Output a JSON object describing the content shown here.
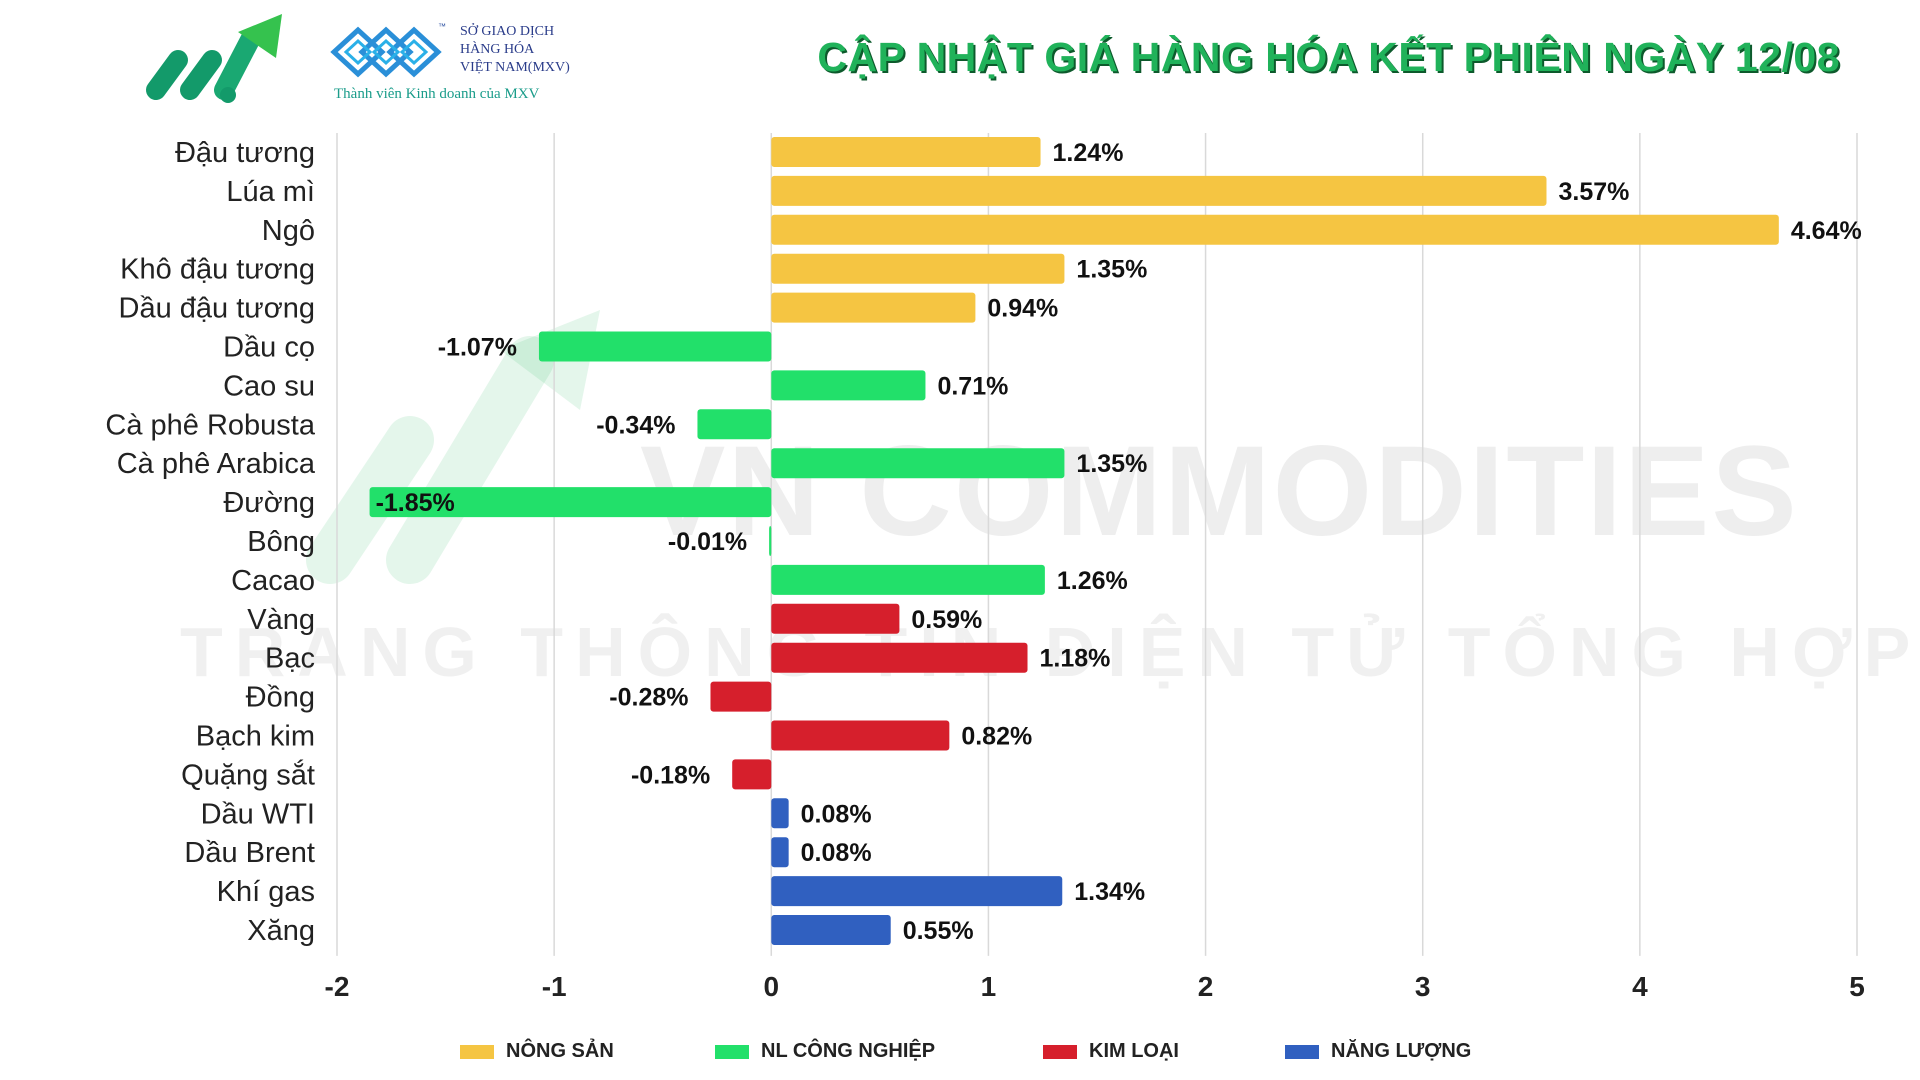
{
  "header": {
    "title": "CẬP NHẬT GIÁ HÀNG HÓA KẾT PHIÊN NGÀY 12/08",
    "mxv_line1": "SỞ GIAO DỊCH",
    "mxv_line2": "HÀNG HÓA",
    "mxv_line3": "VIỆT NAM(MXV)",
    "mxv_tm": "™",
    "mxv_tagline": "Thành viên Kinh doanh của MXV"
  },
  "watermark": {
    "main": "VN COMMODITIES",
    "sub": "TRANG THÔNG TIN ĐIỆN TỬ TỔNG HỢP"
  },
  "colors": {
    "nong_san": "#F5C542",
    "nl_cong_nghiep": "#22E06A",
    "kim_loai": "#D61F2C",
    "nang_luong": "#3060C0",
    "title_green": "#20B25A"
  },
  "chart_data": {
    "type": "bar",
    "orientation": "horizontal",
    "xlim": [
      -2,
      5
    ],
    "xticks": [
      -2,
      -1,
      0,
      1,
      2,
      3,
      4,
      5
    ],
    "grid": true,
    "legend_position": "bottom",
    "categories": [
      "Đậu tương",
      "Lúa mì",
      "Ngô",
      "Khô đậu tương",
      "Dầu đậu tương",
      "Dầu cọ",
      "Cao su",
      "Cà phê Robusta",
      "Cà phê Arabica",
      "Đường",
      "Bông",
      "Cacao",
      "Vàng",
      "Bạc",
      "Đồng",
      "Bạch kim",
      "Quặng sắt",
      "Dầu WTI",
      "Dầu Brent",
      "Khí gas",
      "Xăng"
    ],
    "values": [
      1.24,
      3.57,
      4.64,
      1.35,
      0.94,
      -1.07,
      0.71,
      -0.34,
      1.35,
      -1.85,
      -0.01,
      1.26,
      0.59,
      1.18,
      -0.28,
      0.82,
      -0.18,
      0.08,
      0.08,
      1.34,
      0.55
    ],
    "labels": [
      "1.24%",
      "3.57%",
      "4.64%",
      "1.35%",
      "0.94%",
      "-1.07%",
      "0.71%",
      "-0.34%",
      "1.35%",
      "-1.85%",
      "-0.01%",
      "1.26%",
      "0.59%",
      "1.18%",
      "-0.28%",
      "0.82%",
      "-0.18%",
      "0.08%",
      "0.08%",
      "1.34%",
      "0.55%"
    ],
    "groups": [
      "nong_san",
      "nong_san",
      "nong_san",
      "nong_san",
      "nong_san",
      "nl_cong_nghiep",
      "nl_cong_nghiep",
      "nl_cong_nghiep",
      "nl_cong_nghiep",
      "nl_cong_nghiep",
      "nl_cong_nghiep",
      "nl_cong_nghiep",
      "kim_loai",
      "kim_loai",
      "kim_loai",
      "kim_loai",
      "kim_loai",
      "nang_luong",
      "nang_luong",
      "nang_luong",
      "nang_luong"
    ],
    "legend": [
      {
        "key": "nong_san",
        "label": "NÔNG SẢN"
      },
      {
        "key": "nl_cong_nghiep",
        "label": "NL CÔNG NGHIỆP"
      },
      {
        "key": "kim_loai",
        "label": "KIM LOẠI"
      },
      {
        "key": "nang_luong",
        "label": "NĂNG LƯỢNG"
      }
    ]
  }
}
